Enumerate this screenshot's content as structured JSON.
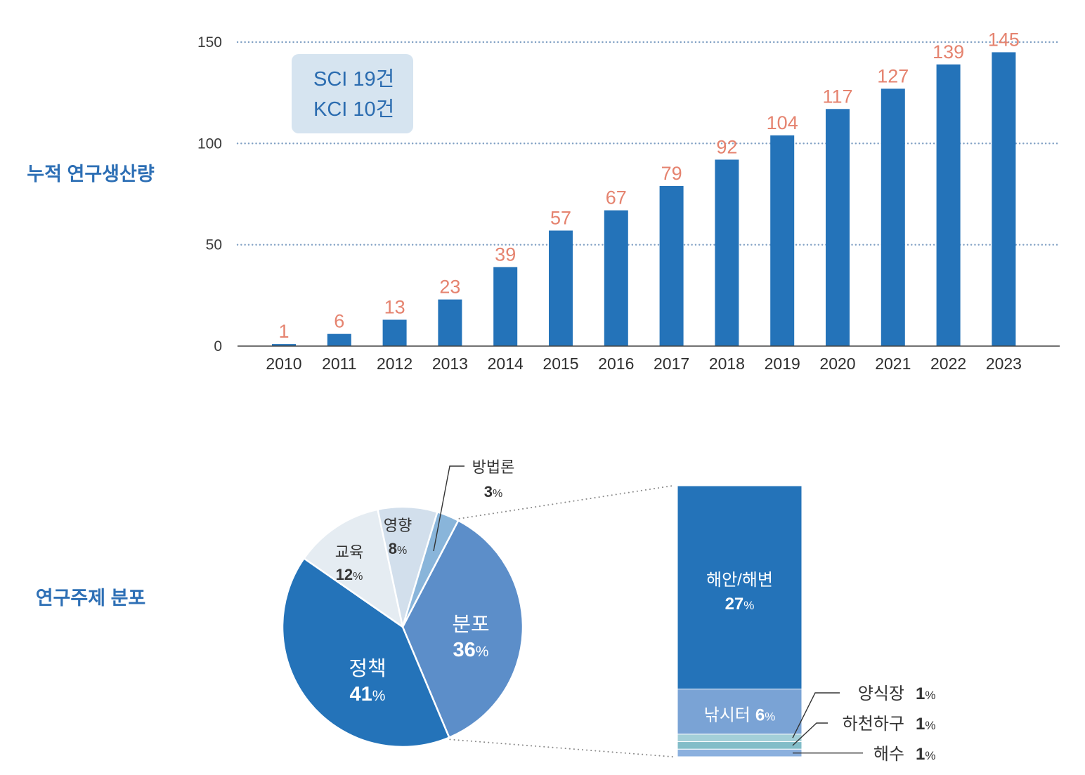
{
  "chart_data": [
    {
      "type": "bar",
      "title": "누적 연구생산량",
      "categories": [
        "2010",
        "2011",
        "2012",
        "2013",
        "2014",
        "2015",
        "2016",
        "2017",
        "2018",
        "2019",
        "2020",
        "2021",
        "2022",
        "2023"
      ],
      "values": [
        1,
        6,
        13,
        23,
        39,
        57,
        67,
        79,
        92,
        104,
        117,
        127,
        139,
        145
      ],
      "yticks": [
        0,
        50,
        100,
        150
      ],
      "ylim": [
        0,
        150
      ],
      "grid": true,
      "annotation": [
        "SCI 19건",
        "KCI 10건"
      ],
      "bar_color": "#2473b9",
      "value_label_color": "#e5836f"
    },
    {
      "type": "pie",
      "title": "연구주제 분포",
      "unit": "%",
      "slices": [
        {
          "label": "분포",
          "value": 36,
          "color": "#5c8ec9",
          "breakdown": [
            {
              "label": "해안/해변",
              "value": 27,
              "color": "#2473b9"
            },
            {
              "label": "낚시터",
              "value": 6,
              "color": "#7aa3d5"
            },
            {
              "label": "양식장",
              "value": 1,
              "color": "#a3cfd8"
            },
            {
              "label": "하천하구",
              "value": 1,
              "color": "#82bdc8"
            },
            {
              "label": "해수",
              "value": 1,
              "color": "#8bb0de"
            }
          ]
        },
        {
          "label": "정책",
          "value": 41,
          "color": "#2473b9"
        },
        {
          "label": "교육",
          "value": 12,
          "color": "#e5ecf2"
        },
        {
          "label": "영향",
          "value": 8,
          "color": "#d2dfec"
        },
        {
          "label": "방법론",
          "value": 3,
          "color": "#89b5da"
        }
      ]
    }
  ]
}
